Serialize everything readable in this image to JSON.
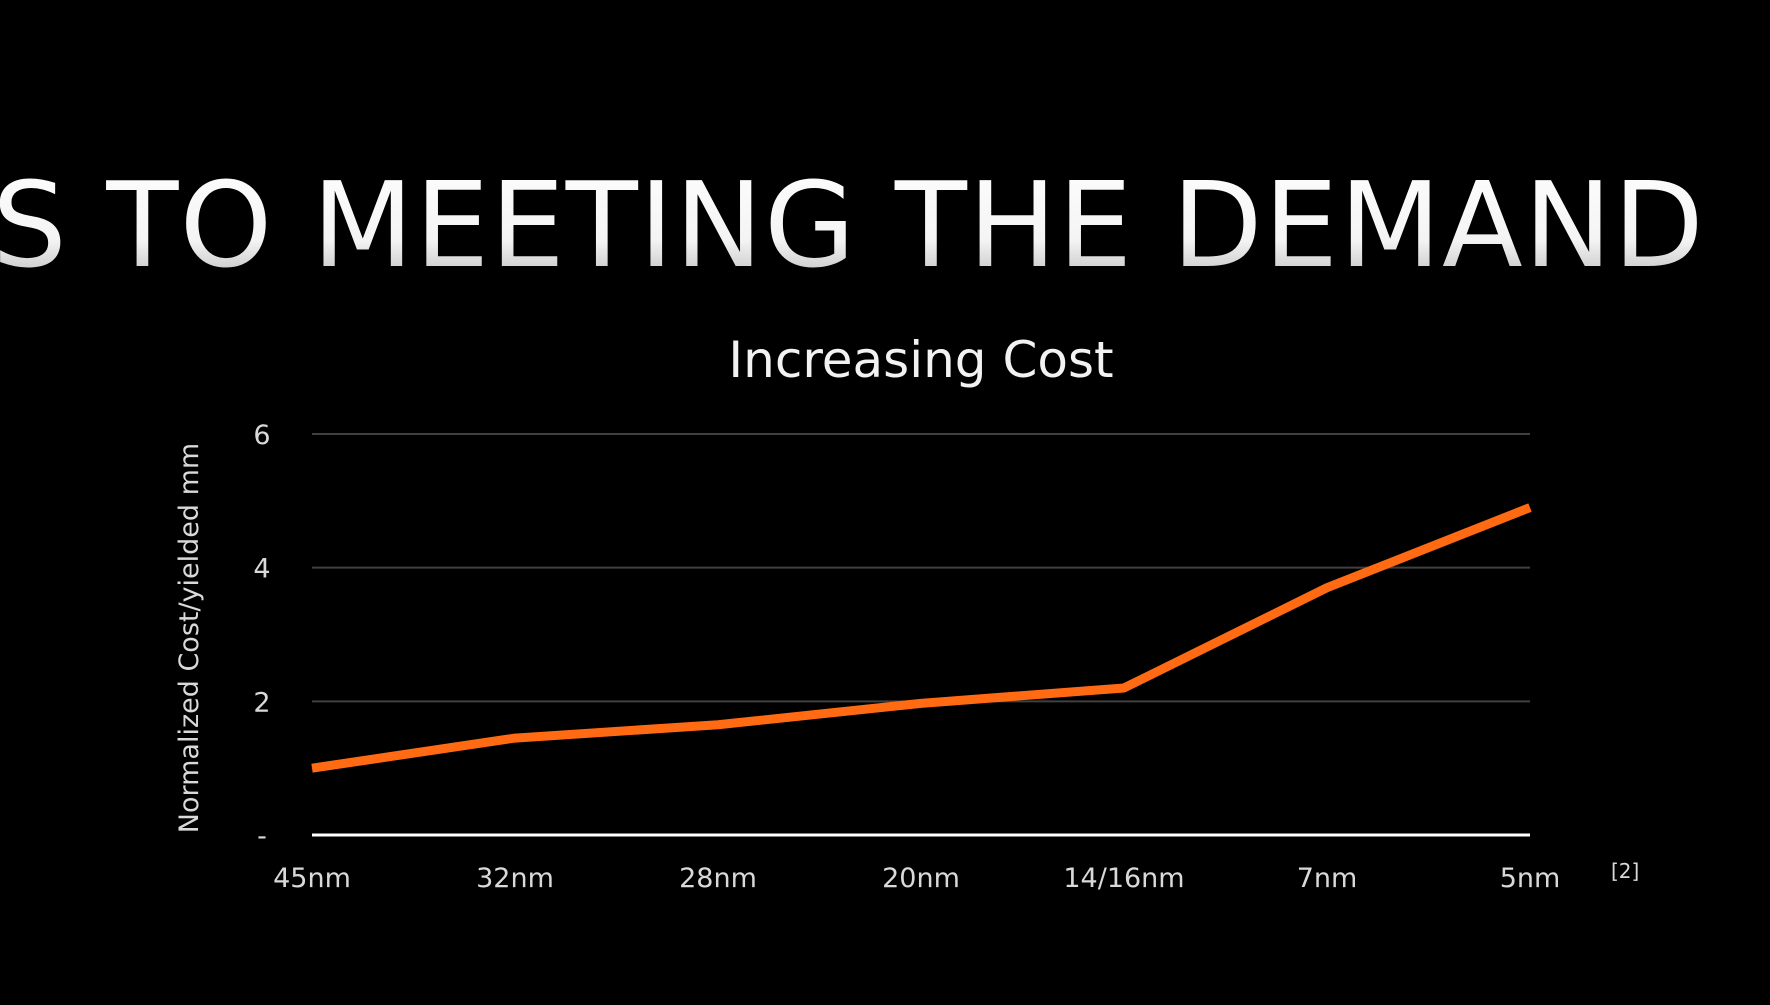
{
  "slide": {
    "title": "S TO MEETING THE DEMAND",
    "citation": "[2]"
  },
  "chart_data": {
    "type": "line",
    "title": "Increasing Cost",
    "xlabel": "",
    "ylabel": "Normalized Cost/yielded mm",
    "categories": [
      "45nm",
      "32nm",
      "28nm",
      "20nm",
      "14/16nm",
      "7nm",
      "5nm"
    ],
    "series": [
      {
        "name": "Cost",
        "values": [
          1.0,
          1.45,
          1.65,
          1.97,
          2.2,
          3.7,
          4.9
        ],
        "color": "#ff6a13"
      }
    ],
    "ylim": [
      0,
      6
    ],
    "yticks": [
      0,
      2,
      4,
      6
    ],
    "ytick_labels": [
      "-",
      "2",
      "4",
      "6"
    ],
    "grid": true,
    "legend": "none"
  }
}
